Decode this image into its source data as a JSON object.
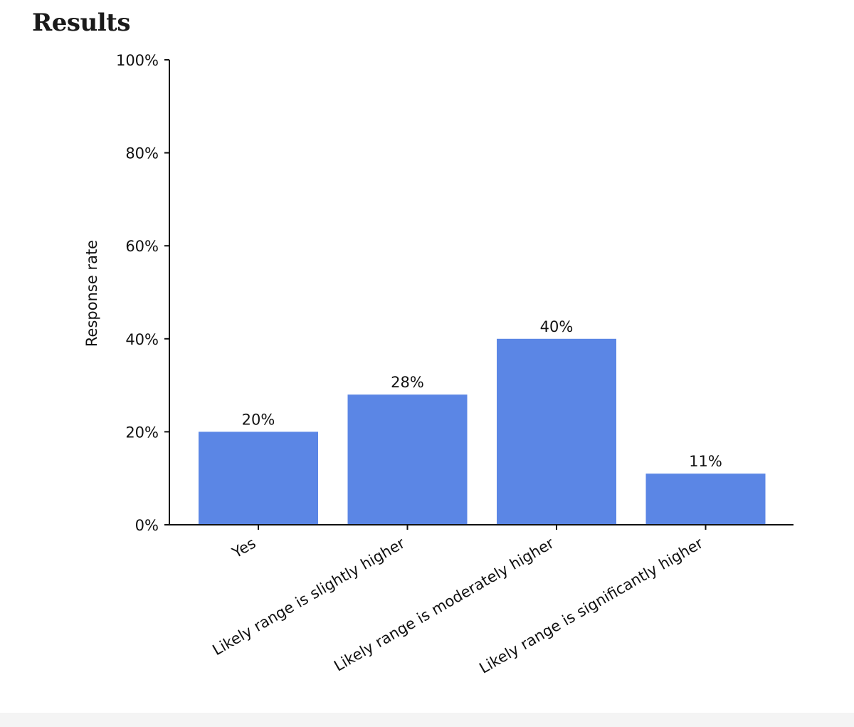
{
  "page": {
    "title": "Results"
  },
  "chart_data": {
    "type": "bar",
    "categories": [
      "Yes",
      "Likely range is slightly higher",
      "Likely range is moderately higher",
      "Likely range is significantly higher"
    ],
    "values": [
      20,
      28,
      40,
      11
    ],
    "data_labels": [
      "20%",
      "28%",
      "40%",
      "11%"
    ],
    "title": "",
    "xlabel": "",
    "ylabel": "Response rate",
    "ylim": [
      0,
      100
    ],
    "yticks": [
      0,
      20,
      40,
      60,
      80,
      100
    ],
    "ytick_labels": [
      "0%",
      "20%",
      "40%",
      "60%",
      "80%",
      "100%"
    ],
    "bar_color": "#5b86e5",
    "grid": false
  }
}
